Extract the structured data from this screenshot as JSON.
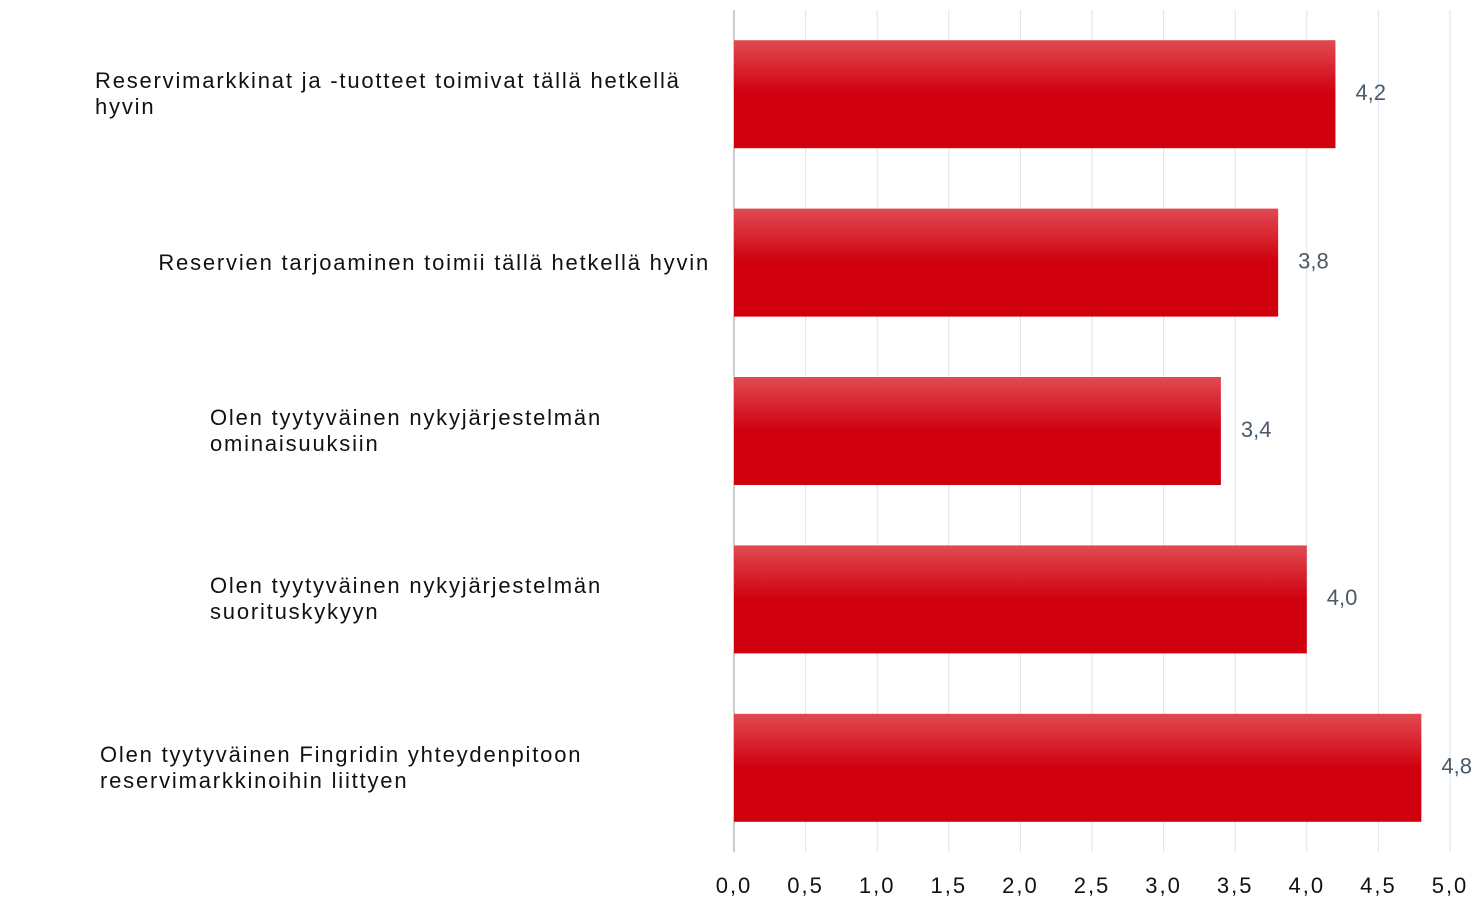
{
  "chart_data": {
    "type": "barh",
    "categories": [
      "Reservimarkkinat ja -tuotteet toimivat tällä hetkellä hyvin",
      "Reservien tarjoaminen toimii tällä hetkellä hyvin",
      "Olen tyytyväinen nykyjärjestelmän ominaisuuksiin",
      "Olen tyytyväinen nykyjärjestelmän suorituskykyyn",
      "Olen tyytyväinen Fingridin yhteydenpitoon reservimarkkinoihin liittyen"
    ],
    "values": [
      4.2,
      3.8,
      3.4,
      4.0,
      4.8
    ],
    "value_labels": [
      "4,2",
      "3,8",
      "3,4",
      "4,0",
      "4,8"
    ],
    "color": [
      "#e14a52",
      "#d0000f"
    ],
    "xlim": [
      0,
      5
    ],
    "xticks": [
      {
        "value": 0,
        "label": "0,0"
      },
      {
        "value": 0.5,
        "label": "0,5"
      },
      {
        "value": 1,
        "label": "1,0"
      },
      {
        "value": 1.5,
        "label": "1,5"
      },
      {
        "value": 2,
        "label": "2,0"
      },
      {
        "value": 2.5,
        "label": "2,5"
      },
      {
        "value": 3,
        "label": "3,0"
      },
      {
        "value": 3.5,
        "label": "3,5"
      },
      {
        "value": 4,
        "label": "4,0"
      },
      {
        "value": 4.5,
        "label": "4,5"
      },
      {
        "value": 5,
        "label": "5,0"
      }
    ],
    "grid": true
  }
}
